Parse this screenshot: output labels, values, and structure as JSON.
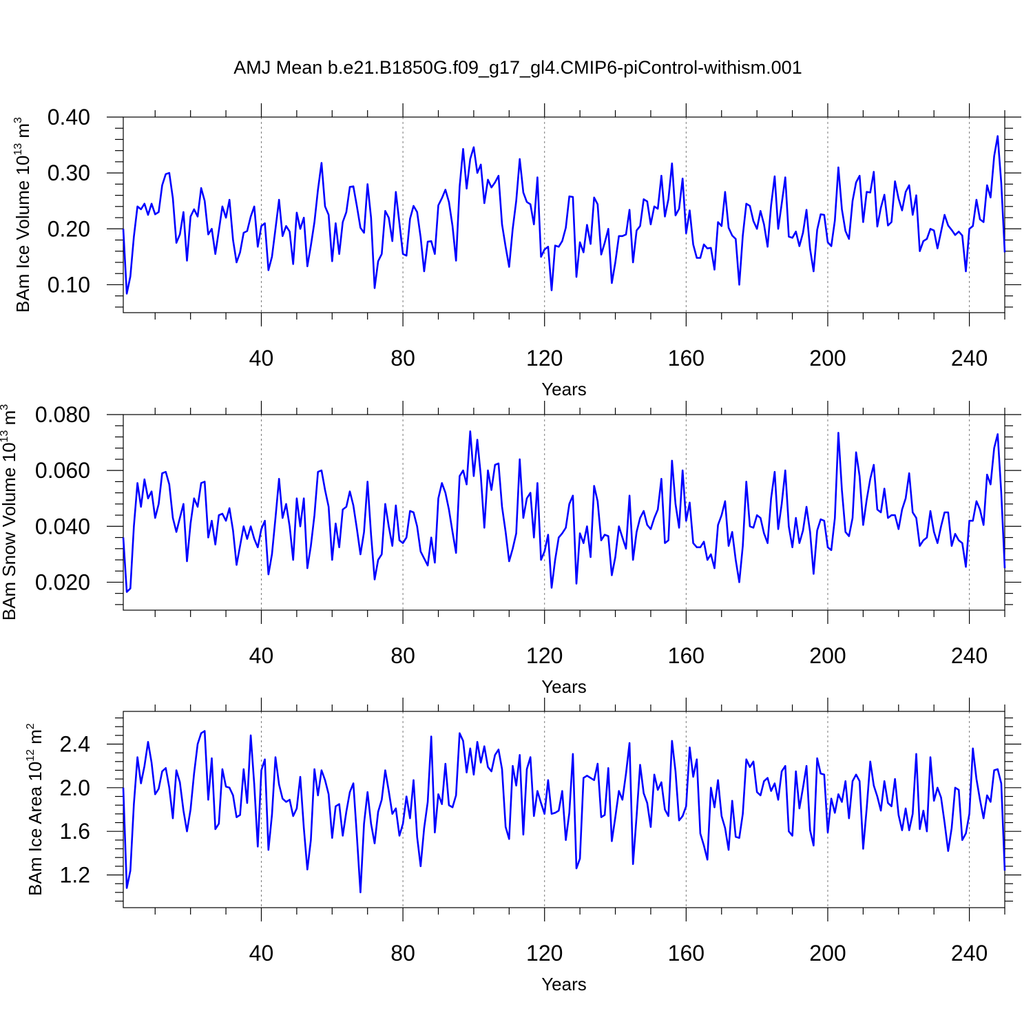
{
  "figure_title": "AMJ Mean b.e21.B1850G.f09_g17_gl4.CMIP6-piControl-withism.001",
  "colors": {
    "series": "#0000ff",
    "axes": "#000000",
    "grid": "#777777"
  },
  "chart_data": [
    {
      "type": "line",
      "title": "AMJ Mean b.e21.B1850G.f09_g17_gl4.CMIP6-piControl-withism.001",
      "xlabel": "Years",
      "ylabel_main": "BAm Ice Volume 10",
      "ylabel_sup": "13",
      "ylabel_unit": " m",
      "ylabel_unit_sup": "3",
      "xlim": [
        1,
        250
      ],
      "ylim": [
        0.05,
        0.4
      ],
      "xticks": [
        40,
        80,
        120,
        160,
        200,
        240
      ],
      "xtick_labels": [
        "40",
        "80",
        "120",
        "160",
        "200",
        "240"
      ],
      "yticks": [
        0.1,
        0.2,
        0.3,
        0.4
      ],
      "ytick_labels": [
        "0.10",
        "0.20",
        "0.30",
        "0.40"
      ],
      "grid": "vertical dashed at major x ticks",
      "series": [
        {
          "name": "BAm Ice Volume",
          "x_start": 1,
          "values": [
            0.2,
            0.084,
            0.115,
            0.186,
            0.24,
            0.235,
            0.245,
            0.225,
            0.245,
            0.226,
            0.23,
            0.278,
            0.298,
            0.3,
            0.255,
            0.175,
            0.19,
            0.23,
            0.143,
            0.222,
            0.235,
            0.222,
            0.273,
            0.25,
            0.19,
            0.2,
            0.155,
            0.197,
            0.24,
            0.22,
            0.252,
            0.18,
            0.14,
            0.158,
            0.193,
            0.196,
            0.222,
            0.24,
            0.168,
            0.205,
            0.21,
            0.126,
            0.15,
            0.2,
            0.252,
            0.187,
            0.205,
            0.195,
            0.137,
            0.229,
            0.2,
            0.22,
            0.133,
            0.17,
            0.212,
            0.27,
            0.318,
            0.24,
            0.225,
            0.142,
            0.21,
            0.155,
            0.212,
            0.23,
            0.275,
            0.276,
            0.24,
            0.202,
            0.193,
            0.28,
            0.22,
            0.094,
            0.142,
            0.155,
            0.232,
            0.22,
            0.178,
            0.266,
            0.21,
            0.155,
            0.152,
            0.218,
            0.241,
            0.23,
            0.185,
            0.124,
            0.177,
            0.178,
            0.155,
            0.242,
            0.255,
            0.27,
            0.248,
            0.205,
            0.143,
            0.275,
            0.343,
            0.272,
            0.325,
            0.346,
            0.3,
            0.315,
            0.246,
            0.288,
            0.274,
            0.283,
            0.295,
            0.208,
            0.168,
            0.132,
            0.2,
            0.25,
            0.325,
            0.265,
            0.248,
            0.244,
            0.208,
            0.292,
            0.15,
            0.163,
            0.168,
            0.09,
            0.17,
            0.168,
            0.178,
            0.202,
            0.258,
            0.257,
            0.114,
            0.176,
            0.158,
            0.207,
            0.173,
            0.256,
            0.244,
            0.154,
            0.175,
            0.2,
            0.103,
            0.14,
            0.187,
            0.187,
            0.19,
            0.234,
            0.14,
            0.197,
            0.205,
            0.253,
            0.249,
            0.208,
            0.24,
            0.236,
            0.295,
            0.222,
            0.253,
            0.317,
            0.224,
            0.236,
            0.29,
            0.192,
            0.233,
            0.172,
            0.148,
            0.148,
            0.172,
            0.165,
            0.166,
            0.127,
            0.212,
            0.205,
            0.266,
            0.202,
            0.188,
            0.182,
            0.1,
            0.188,
            0.245,
            0.241,
            0.214,
            0.2,
            0.232,
            0.208,
            0.168,
            0.242,
            0.294,
            0.2,
            0.245,
            0.292,
            0.186,
            0.184,
            0.195,
            0.169,
            0.193,
            0.234,
            0.164,
            0.124,
            0.198,
            0.226,
            0.225,
            0.176,
            0.169,
            0.215,
            0.31,
            0.235,
            0.196,
            0.182,
            0.25,
            0.283,
            0.295,
            0.212,
            0.266,
            0.265,
            0.302,
            0.204,
            0.238,
            0.261,
            0.206,
            0.212,
            0.285,
            0.254,
            0.233,
            0.266,
            0.278,
            0.225,
            0.26,
            0.16,
            0.178,
            0.182,
            0.2,
            0.197,
            0.165,
            0.195,
            0.225,
            0.206,
            0.198,
            0.189,
            0.195,
            0.188,
            0.124,
            0.2,
            0.205,
            0.252,
            0.217,
            0.212,
            0.278,
            0.256,
            0.33,
            0.366,
            0.282,
            0.158
          ]
        }
      ]
    },
    {
      "type": "line",
      "title": "",
      "xlabel": "Years",
      "ylabel_main": "BAm Snow Volume 10",
      "ylabel_sup": "13",
      "ylabel_unit": " m",
      "ylabel_unit_sup": "3",
      "xlim": [
        1,
        250
      ],
      "ylim": [
        0.01,
        0.08
      ],
      "xticks": [
        40,
        80,
        120,
        160,
        200,
        240
      ],
      "xtick_labels": [
        "40",
        "80",
        "120",
        "160",
        "200",
        "240"
      ],
      "yticks": [
        0.02,
        0.04,
        0.06,
        0.08
      ],
      "ytick_labels": [
        "0.020",
        "0.040",
        "0.060",
        "0.080"
      ],
      "grid": "vertical dashed at major x ticks",
      "series": [
        {
          "name": "BAm Snow Volume",
          "x_start": 1,
          "values": [
            0.036,
            0.0165,
            0.0178,
            0.04,
            0.0555,
            0.047,
            0.0568,
            0.05,
            0.0525,
            0.043,
            0.048,
            0.059,
            0.0595,
            0.055,
            0.043,
            0.038,
            0.043,
            0.048,
            0.0275,
            0.041,
            0.05,
            0.047,
            0.0555,
            0.056,
            0.036,
            0.042,
            0.0335,
            0.044,
            0.0445,
            0.042,
            0.0465,
            0.0385,
            0.0262,
            0.033,
            0.04,
            0.0355,
            0.04,
            0.0355,
            0.0325,
            0.039,
            0.042,
            0.0228,
            0.03,
            0.043,
            0.057,
            0.043,
            0.048,
            0.04,
            0.028,
            0.05,
            0.04,
            0.05,
            0.025,
            0.033,
            0.044,
            0.0595,
            0.06,
            0.053,
            0.047,
            0.028,
            0.041,
            0.0325,
            0.046,
            0.047,
            0.0525,
            0.0475,
            0.039,
            0.03,
            0.038,
            0.056,
            0.037,
            0.021,
            0.028,
            0.03,
            0.048,
            0.04,
            0.033,
            0.0475,
            0.035,
            0.034,
            0.036,
            0.0455,
            0.045,
            0.04,
            0.031,
            0.0285,
            0.026,
            0.036,
            0.027,
            0.05,
            0.0555,
            0.052,
            0.046,
            0.038,
            0.0305,
            0.058,
            0.06,
            0.055,
            0.074,
            0.058,
            0.071,
            0.058,
            0.0395,
            0.06,
            0.053,
            0.062,
            0.0625,
            0.047,
            0.038,
            0.0275,
            0.032,
            0.0375,
            0.064,
            0.043,
            0.05,
            0.052,
            0.036,
            0.0555,
            0.028,
            0.031,
            0.037,
            0.018,
            0.028,
            0.036,
            0.0375,
            0.0395,
            0.048,
            0.051,
            0.0195,
            0.0375,
            0.034,
            0.04,
            0.029,
            0.0545,
            0.049,
            0.035,
            0.037,
            0.0365,
            0.0225,
            0.029,
            0.04,
            0.036,
            0.032,
            0.051,
            0.028,
            0.038,
            0.043,
            0.0455,
            0.0405,
            0.039,
            0.043,
            0.046,
            0.057,
            0.034,
            0.035,
            0.0635,
            0.048,
            0.0395,
            0.06,
            0.042,
            0.0485,
            0.034,
            0.0325,
            0.0325,
            0.0345,
            0.028,
            0.03,
            0.025,
            0.0405,
            0.044,
            0.049,
            0.033,
            0.038,
            0.028,
            0.02,
            0.033,
            0.056,
            0.04,
            0.0395,
            0.044,
            0.043,
            0.0375,
            0.034,
            0.05,
            0.0595,
            0.039,
            0.048,
            0.06,
            0.04,
            0.0325,
            0.043,
            0.034,
            0.0385,
            0.047,
            0.038,
            0.023,
            0.0385,
            0.0425,
            0.042,
            0.0325,
            0.0315,
            0.043,
            0.0735,
            0.053,
            0.038,
            0.0365,
            0.043,
            0.0665,
            0.058,
            0.0405,
            0.0495,
            0.057,
            0.062,
            0.046,
            0.045,
            0.0535,
            0.043,
            0.044,
            0.044,
            0.039,
            0.046,
            0.05,
            0.059,
            0.045,
            0.043,
            0.033,
            0.035,
            0.036,
            0.0455,
            0.038,
            0.034,
            0.04,
            0.045,
            0.045,
            0.033,
            0.0373,
            0.035,
            0.034,
            0.0255,
            0.042,
            0.042,
            0.049,
            0.046,
            0.0405,
            0.0585,
            0.055,
            0.068,
            0.073,
            0.052,
            0.025
          ]
        }
      ]
    },
    {
      "type": "line",
      "title": "",
      "xlabel": "Years",
      "ylabel_main": "BAm Ice Area 10",
      "ylabel_sup": "12",
      "ylabel_unit": " m",
      "ylabel_unit_sup": "2",
      "xlim": [
        1,
        250
      ],
      "ylim": [
        0.9,
        2.7
      ],
      "xticks": [
        40,
        80,
        120,
        160,
        200,
        240
      ],
      "xtick_labels": [
        "40",
        "80",
        "120",
        "160",
        "200",
        "240"
      ],
      "yticks": [
        1.2,
        1.6,
        2.0,
        2.4
      ],
      "ytick_labels": [
        "1.2",
        "1.6",
        "2.0",
        "2.4"
      ],
      "grid": "vertical dashed at major x ticks",
      "series": [
        {
          "name": "BAm Ice Area",
          "x_start": 1,
          "values": [
            2.0,
            1.08,
            1.24,
            1.85,
            2.28,
            2.04,
            2.2,
            2.42,
            2.23,
            1.94,
            1.99,
            2.15,
            2.18,
            2.0,
            1.72,
            2.16,
            2.05,
            1.79,
            1.6,
            1.8,
            2.13,
            2.4,
            2.5,
            2.52,
            1.89,
            2.27,
            1.62,
            1.67,
            2.17,
            2.01,
            2.0,
            1.93,
            1.73,
            1.75,
            2.17,
            1.86,
            2.48,
            2.03,
            1.46,
            2.16,
            2.26,
            1.43,
            1.75,
            2.28,
            2.03,
            1.9,
            1.87,
            1.89,
            1.74,
            1.81,
            2.1,
            1.63,
            1.25,
            1.52,
            2.17,
            1.93,
            2.16,
            2.07,
            1.94,
            1.54,
            1.83,
            1.85,
            1.56,
            1.78,
            1.96,
            2.04,
            1.55,
            1.04,
            1.67,
            1.96,
            1.67,
            1.49,
            1.78,
            1.89,
            2.16,
            1.97,
            1.76,
            1.81,
            1.56,
            1.67,
            1.92,
            1.72,
            2.07,
            1.55,
            1.28,
            1.63,
            1.87,
            2.47,
            1.59,
            1.94,
            1.85,
            2.22,
            1.84,
            1.82,
            1.93,
            2.5,
            2.43,
            2.14,
            2.36,
            2.12,
            2.42,
            2.23,
            2.38,
            2.19,
            2.15,
            2.3,
            2.35,
            2.17,
            1.64,
            1.53,
            2.2,
            2.02,
            2.3,
            1.57,
            2.17,
            2.28,
            1.74,
            1.97,
            1.86,
            1.76,
            2.07,
            1.76,
            1.77,
            1.79,
            1.97,
            1.52,
            1.77,
            2.31,
            1.26,
            1.35,
            2.09,
            2.11,
            2.09,
            2.07,
            2.22,
            1.73,
            1.75,
            2.18,
            1.51,
            1.73,
            1.97,
            1.89,
            2.13,
            2.41,
            1.3,
            1.74,
            2.21,
            1.95,
            1.86,
            1.64,
            2.12,
            1.98,
            2.05,
            1.8,
            1.74,
            2.43,
            2.15,
            1.7,
            1.74,
            1.83,
            2.37,
            2.1,
            2.26,
            1.58,
            1.47,
            1.34,
            2.0,
            1.82,
            2.07,
            1.74,
            1.63,
            1.43,
            1.88,
            1.55,
            1.54,
            1.76,
            2.26,
            2.19,
            2.24,
            1.96,
            1.93,
            2.06,
            2.09,
            1.97,
            2.04,
            1.89,
            2.15,
            2.2,
            1.6,
            1.56,
            2.15,
            1.81,
            2.0,
            2.2,
            1.61,
            1.47,
            2.27,
            2.13,
            2.12,
            1.59,
            1.9,
            1.77,
            1.94,
            1.87,
            2.06,
            1.72,
            2.06,
            2.12,
            2.06,
            1.44,
            1.81,
            2.24,
            2.02,
            1.92,
            1.79,
            2.06,
            1.86,
            1.83,
            2.08,
            1.75,
            1.61,
            1.81,
            1.61,
            1.76,
            2.31,
            1.62,
            1.79,
            1.6,
            2.28,
            1.88,
            2.0,
            1.91,
            1.68,
            1.42,
            1.63,
            2.0,
            1.98,
            1.52,
            1.58,
            1.76,
            2.36,
            2.08,
            1.89,
            1.72,
            1.93,
            1.87,
            2.16,
            2.17,
            2.04,
            1.24
          ]
        }
      ]
    }
  ]
}
